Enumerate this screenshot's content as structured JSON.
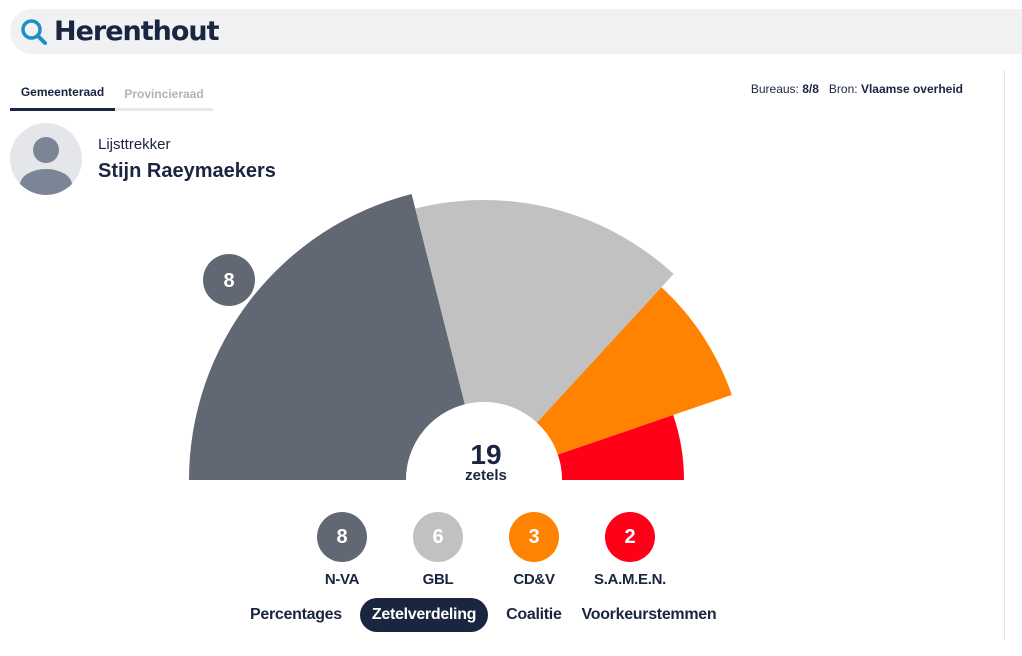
{
  "search": {
    "title": "Herenthout"
  },
  "tabs": [
    {
      "label": "Gemeenteraad",
      "active": true
    },
    {
      "label": "Provincieraad",
      "active": false
    }
  ],
  "meta": {
    "bureaus_label": "Bureaus:",
    "bureaus_value": "8/8",
    "bron_label": "Bron:",
    "bron_value": "Vlaamse overheid"
  },
  "leader": {
    "label": "Lijsttrekker",
    "name": "Stijn Raeymaekers"
  },
  "center": {
    "value": "19",
    "label": "zetels"
  },
  "chart_data": {
    "type": "pie",
    "total_seats": 19,
    "series": [
      {
        "name": "N-VA",
        "value": 8,
        "color": "#626873"
      },
      {
        "name": "GBL",
        "value": 6,
        "color": "#c1c1c1"
      },
      {
        "name": "CD&V",
        "value": 3,
        "color": "#ff8200"
      },
      {
        "name": "S.A.M.E.N.",
        "value": 2,
        "color": "#ff0018"
      }
    ],
    "label_on_chart": "8"
  },
  "parties": [
    {
      "seats": "8",
      "name": "N-VA",
      "color": "#626873"
    },
    {
      "seats": "6",
      "name": "GBL",
      "color": "#c1c1c1"
    },
    {
      "seats": "3",
      "name": "CD&V",
      "color": "#ff8200"
    },
    {
      "seats": "2",
      "name": "S.A.M.E.N.",
      "color": "#ff0018"
    }
  ],
  "view_tabs": [
    {
      "label": "Percentages",
      "active": false
    },
    {
      "label": "Zetelverdeling",
      "active": true
    },
    {
      "label": "Coalitie",
      "active": false
    },
    {
      "label": "Voorkeurstemmen",
      "active": false
    }
  ],
  "colors": {
    "accent": "#1a2540",
    "search_icon": "#1e8fc6"
  }
}
